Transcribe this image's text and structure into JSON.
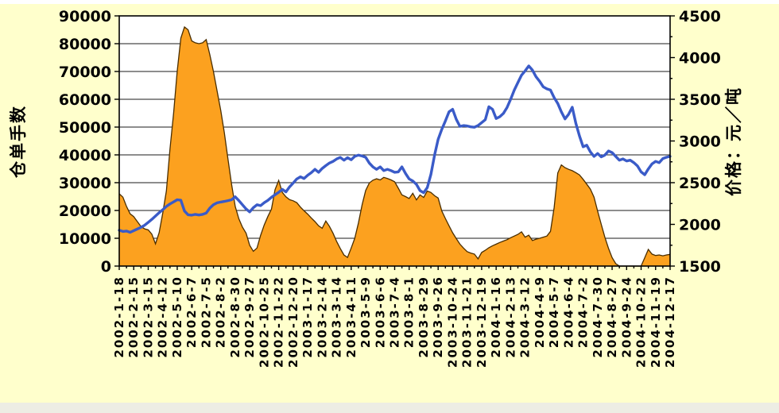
{
  "page": {
    "background": "#FFFFCC",
    "plot_background": "#FFFFFF"
  },
  "chart_data": {
    "type": "area+line",
    "title": "",
    "grid": "horizontal",
    "legend": "none",
    "colors": {
      "area_fill": "#FCA11F",
      "area_outline": "#4A2E00",
      "line": "#3A5BC8",
      "grid": "#1B1B1B",
      "text": "#000000",
      "background": "#FFFFCC"
    },
    "left_axis": {
      "title": "仓单手数",
      "min": 0,
      "max": 90000,
      "step": 10000,
      "tick_labels": [
        "0",
        "10000",
        "20000",
        "30000",
        "40000",
        "50000",
        "60000",
        "70000",
        "80000",
        "90000"
      ]
    },
    "right_axis": {
      "title": "价格：元／吨",
      "min": 1500,
      "max": 4500,
      "step": 500,
      "minor_step": 250,
      "tick_labels": [
        "1500",
        "2000",
        "2500",
        "3000",
        "3500",
        "4000",
        "4500"
      ]
    },
    "x_axis": {
      "points_per_label": 4,
      "tick_labels": [
        "2002-1-18",
        "2002-2-15",
        "2002-3-15",
        "2002-4-12",
        "2002-5-10",
        "2002-6-7",
        "2002-7-5",
        "2002-8-2",
        "2002-8-30",
        "2002-9-27",
        "2002-10-25",
        "2002-11-22",
        "2002-12-20",
        "2003-1-17",
        "2003-2-14",
        "2003-3-14",
        "2003-4-11",
        "2003-5-9",
        "2003-6-6",
        "2003-7-4",
        "2003-8-1",
        "2003-8-29",
        "2003-9-26",
        "2003-10-24",
        "2003-11-21",
        "2003-12-19",
        "2004-1-16",
        "2004-2-13",
        "2004-3-12",
        "2004-4-9",
        "2004-5-7",
        "2004-6-4",
        "2004-7-2",
        "2004-7-30",
        "2004-8-27",
        "2004-9-24",
        "2004-10-22",
        "2004-11-19",
        "2004-12-17"
      ]
    },
    "series": [
      {
        "name": "仓单手数",
        "chart": "area",
        "axis": "left",
        "fill": "#FCA11F",
        "stroke": "#4A2E00",
        "values": [
          26000,
          24800,
          21500,
          18800,
          17800,
          16000,
          14200,
          13400,
          13000,
          11500,
          8000,
          12000,
          19000,
          27000,
          42000,
          55000,
          70000,
          82000,
          86000,
          85000,
          81000,
          80300,
          80000,
          80300,
          81500,
          76000,
          70000,
          63000,
          56000,
          48000,
          38500,
          29500,
          21500,
          17000,
          14000,
          11800,
          7500,
          5300,
          6500,
          11000,
          14800,
          17800,
          20500,
          27500,
          30800,
          26500,
          24900,
          23900,
          23500,
          22800,
          21200,
          19900,
          18700,
          17300,
          16000,
          14500,
          13600,
          16200,
          14300,
          11800,
          8800,
          6300,
          4000,
          3100,
          6500,
          10000,
          15500,
          22000,
          27200,
          29900,
          30900,
          31400,
          31000,
          31900,
          31500,
          31000,
          30300,
          28000,
          25600,
          25000,
          24300,
          26200,
          23800,
          25600,
          24700,
          27000,
          26500,
          25300,
          24500,
          19800,
          17100,
          14500,
          12000,
          9900,
          7900,
          6500,
          5200,
          4700,
          4300,
          2600,
          4900,
          5700,
          6600,
          7300,
          7900,
          8500,
          9000,
          9500,
          10200,
          10800,
          11400,
          12300,
          10400,
          11100,
          9200,
          9700,
          10000,
          10400,
          10800,
          12500,
          21000,
          33500,
          36400,
          35400,
          34800,
          34300,
          33600,
          32800,
          31200,
          29500,
          27700,
          24800,
          19800,
          15000,
          10400,
          6400,
          3000,
          900,
          0,
          0,
          0,
          0,
          0,
          0,
          0,
          3000,
          6000,
          4300,
          3800,
          4000,
          3700,
          4000,
          4200
        ]
      },
      {
        "name": "价格",
        "chart": "line",
        "axis": "right",
        "color": "#3A5BC8",
        "values": [
          1930,
          1915,
          1920,
          1905,
          1925,
          1945,
          1965,
          1990,
          2025,
          2060,
          2100,
          2140,
          2175,
          2215,
          2245,
          2270,
          2295,
          2290,
          2160,
          2115,
          2110,
          2120,
          2112,
          2120,
          2135,
          2195,
          2235,
          2258,
          2268,
          2275,
          2285,
          2295,
          2330,
          2285,
          2235,
          2185,
          2150,
          2200,
          2235,
          2225,
          2260,
          2288,
          2325,
          2355,
          2385,
          2420,
          2390,
          2450,
          2495,
          2545,
          2570,
          2550,
          2590,
          2620,
          2660,
          2625,
          2670,
          2705,
          2735,
          2755,
          2785,
          2803,
          2770,
          2800,
          2775,
          2815,
          2830,
          2820,
          2805,
          2735,
          2690,
          2660,
          2690,
          2645,
          2660,
          2645,
          2625,
          2630,
          2690,
          2610,
          2545,
          2520,
          2480,
          2405,
          2380,
          2440,
          2600,
          2830,
          3020,
          3140,
          3240,
          3350,
          3380,
          3260,
          3175,
          3185,
          3180,
          3170,
          3165,
          3185,
          3220,
          3255,
          3410,
          3380,
          3270,
          3290,
          3330,
          3400,
          3500,
          3610,
          3700,
          3790,
          3840,
          3900,
          3850,
          3770,
          3715,
          3650,
          3625,
          3610,
          3520,
          3450,
          3350,
          3265,
          3320,
          3405,
          3210,
          3060,
          2930,
          2950,
          2870,
          2815,
          2850,
          2810,
          2830,
          2880,
          2860,
          2815,
          2770,
          2785,
          2760,
          2770,
          2740,
          2700,
          2630,
          2595,
          2665,
          2725,
          2755,
          2740,
          2790,
          2805,
          2815
        ]
      }
    ]
  }
}
